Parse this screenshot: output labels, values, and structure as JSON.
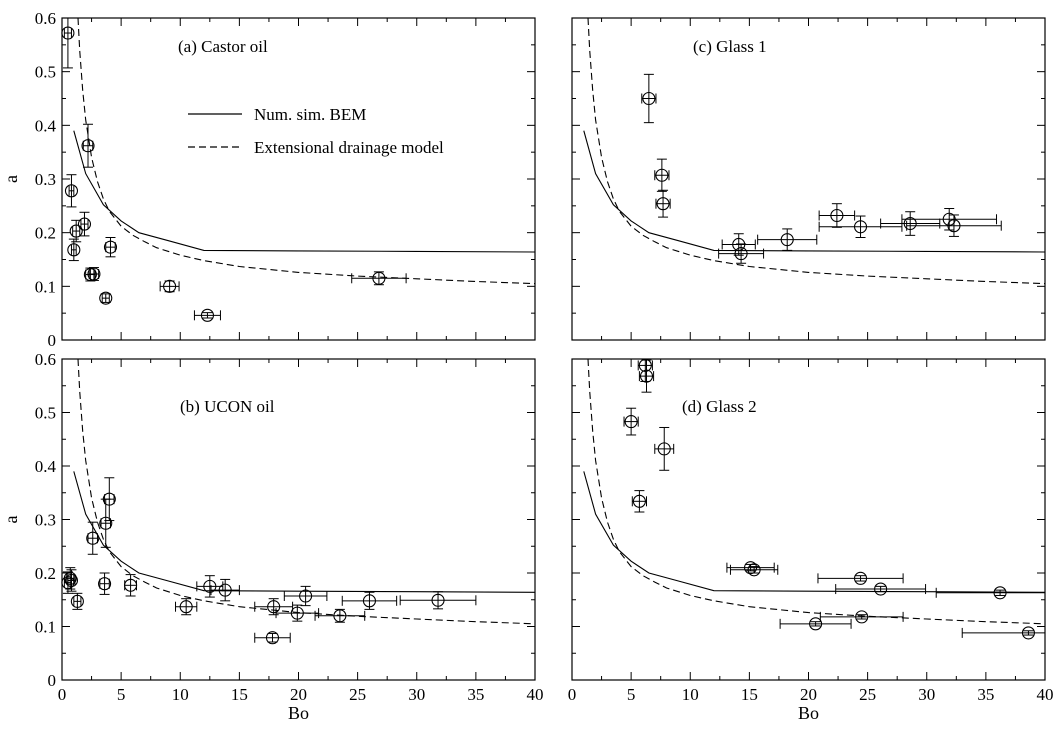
{
  "legend": {
    "solid_label": "Num. sim. BEM",
    "dashed_label": "Extensional drainage model"
  },
  "chart_data": [
    {
      "type": "scatter",
      "title": "(a) Castor oil",
      "xlabel": "",
      "ylabel": "a",
      "xlim": [
        0,
        40
      ],
      "ylim": [
        0,
        0.6
      ],
      "xticks": [
        "0",
        "5",
        "10",
        "15",
        "20",
        "25",
        "30",
        "35",
        "40"
      ],
      "yticks": [
        "0",
        "0.1",
        "0.2",
        "0.3",
        "0.4",
        "0.5",
        "0.6"
      ],
      "show_x_tick_labels": false,
      "show_y_tick_labels": true,
      "points": [
        {
          "x": 0.5,
          "y": 0.572,
          "xerr": 0.3,
          "yerr": 0.065
        },
        {
          "x": 0.8,
          "y": 0.278,
          "xerr": 0.2,
          "yerr": 0.03
        },
        {
          "x": 1.0,
          "y": 0.168,
          "xerr": 0.2,
          "yerr": 0.02
        },
        {
          "x": 1.2,
          "y": 0.203,
          "xerr": 0.3,
          "yerr": 0.02
        },
        {
          "x": 1.9,
          "y": 0.216,
          "xerr": 0.3,
          "yerr": 0.022
        },
        {
          "x": 2.2,
          "y": 0.362,
          "xerr": 0.4,
          "yerr": 0.04
        },
        {
          "x": 2.4,
          "y": 0.122,
          "xerr": 0.4,
          "yerr": 0.012
        },
        {
          "x": 2.7,
          "y": 0.123,
          "xerr": 0.4,
          "yerr": 0.012
        },
        {
          "x": 3.7,
          "y": 0.078,
          "xerr": 0.3,
          "yerr": 0.008
        },
        {
          "x": 4.1,
          "y": 0.173,
          "xerr": 0.4,
          "yerr": 0.018
        },
        {
          "x": 9.1,
          "y": 0.1,
          "xerr": 0.8,
          "yerr": 0.01
        },
        {
          "x": 12.3,
          "y": 0.046,
          "xerr": 1.1,
          "yerr": 0.005
        },
        {
          "x": 26.8,
          "y": 0.115,
          "xerr": 2.3,
          "yerr": 0.012
        }
      ]
    },
    {
      "type": "scatter",
      "title": "(b) UCON oil",
      "xlabel": "Bo",
      "ylabel": "a",
      "xlim": [
        0,
        40
      ],
      "ylim": [
        0,
        0.6
      ],
      "xticks": [
        "0",
        "5",
        "10",
        "15",
        "20",
        "25",
        "30",
        "35",
        "40"
      ],
      "yticks": [
        "0",
        "0.1",
        "0.2",
        "0.3",
        "0.4",
        "0.5",
        "0.6"
      ],
      "show_x_tick_labels": true,
      "show_y_tick_labels": true,
      "points": [
        {
          "x": 0.5,
          "y": 0.182,
          "xerr": 0.3,
          "yerr": 0.02
        },
        {
          "x": 0.7,
          "y": 0.19,
          "xerr": 0.3,
          "yerr": 0.02
        },
        {
          "x": 0.8,
          "y": 0.186,
          "xerr": 0.3,
          "yerr": 0.02
        },
        {
          "x": 1.3,
          "y": 0.147,
          "xerr": 0.3,
          "yerr": 0.015
        },
        {
          "x": 2.6,
          "y": 0.265,
          "xerr": 0.4,
          "yerr": 0.03
        },
        {
          "x": 3.6,
          "y": 0.18,
          "xerr": 0.4,
          "yerr": 0.02
        },
        {
          "x": 3.7,
          "y": 0.293,
          "xerr": 0.4,
          "yerr": 0.045
        },
        {
          "x": 4.0,
          "y": 0.338,
          "xerr": 0.4,
          "yerr": 0.04
        },
        {
          "x": 5.8,
          "y": 0.177,
          "xerr": 0.5,
          "yerr": 0.02
        },
        {
          "x": 10.5,
          "y": 0.137,
          "xerr": 0.9,
          "yerr": 0.015
        },
        {
          "x": 12.5,
          "y": 0.175,
          "xerr": 1.1,
          "yerr": 0.02
        },
        {
          "x": 13.8,
          "y": 0.168,
          "xerr": 1.2,
          "yerr": 0.02
        },
        {
          "x": 17.8,
          "y": 0.079,
          "xerr": 1.5,
          "yerr": 0.008
        },
        {
          "x": 17.9,
          "y": 0.137,
          "xerr": 1.6,
          "yerr": 0.015
        },
        {
          "x": 19.9,
          "y": 0.125,
          "xerr": 1.8,
          "yerr": 0.015
        },
        {
          "x": 20.6,
          "y": 0.157,
          "xerr": 1.8,
          "yerr": 0.018
        },
        {
          "x": 23.5,
          "y": 0.12,
          "xerr": 2.1,
          "yerr": 0.012
        },
        {
          "x": 26.0,
          "y": 0.148,
          "xerr": 2.3,
          "yerr": 0.016
        },
        {
          "x": 31.8,
          "y": 0.149,
          "xerr": 3.2,
          "yerr": 0.016
        }
      ]
    },
    {
      "type": "scatter",
      "title": "(c) Glass 1",
      "xlabel": "",
      "ylabel": "",
      "xlim": [
        0,
        40
      ],
      "ylim": [
        0,
        0.6
      ],
      "xticks": [
        "0",
        "5",
        "10",
        "15",
        "20",
        "25",
        "30",
        "35",
        "40"
      ],
      "yticks": [
        "0",
        "0.1",
        "0.2",
        "0.3",
        "0.4",
        "0.5",
        "0.6"
      ],
      "show_x_tick_labels": false,
      "show_y_tick_labels": false,
      "points": [
        {
          "x": 6.5,
          "y": 0.45,
          "xerr": 0.6,
          "yerr": 0.045
        },
        {
          "x": 7.6,
          "y": 0.307,
          "xerr": 0.6,
          "yerr": 0.03
        },
        {
          "x": 7.7,
          "y": 0.254,
          "xerr": 0.6,
          "yerr": 0.025
        },
        {
          "x": 14.1,
          "y": 0.178,
          "xerr": 1.4,
          "yerr": 0.02
        },
        {
          "x": 14.3,
          "y": 0.161,
          "xerr": 1.9,
          "yerr": 0.018
        },
        {
          "x": 18.2,
          "y": 0.187,
          "xerr": 2.5,
          "yerr": 0.02
        },
        {
          "x": 22.4,
          "y": 0.232,
          "xerr": 1.5,
          "yerr": 0.022
        },
        {
          "x": 24.4,
          "y": 0.211,
          "xerr": 3.5,
          "yerr": 0.02
        },
        {
          "x": 28.6,
          "y": 0.217,
          "xerr": 2.5,
          "yerr": 0.022
        },
        {
          "x": 31.9,
          "y": 0.225,
          "xerr": 4.0,
          "yerr": 0.02
        },
        {
          "x": 32.3,
          "y": 0.213,
          "xerr": 4.0,
          "yerr": 0.02
        }
      ]
    },
    {
      "type": "scatter",
      "title": "(d) Glass 2",
      "xlabel": "Bo",
      "ylabel": "",
      "xlim": [
        0,
        40
      ],
      "ylim": [
        0,
        0.6
      ],
      "xticks": [
        "0",
        "5",
        "10",
        "15",
        "20",
        "25",
        "30",
        "35",
        "40"
      ],
      "yticks": [
        "0",
        "0.1",
        "0.2",
        "0.3",
        "0.4",
        "0.5",
        "0.6"
      ],
      "show_x_tick_labels": true,
      "show_y_tick_labels": false,
      "points": [
        {
          "x": 6.2,
          "y": 0.588,
          "xerr": 0.6,
          "yerr": 0.03
        },
        {
          "x": 6.3,
          "y": 0.568,
          "xerr": 0.6,
          "yerr": 0.03
        },
        {
          "x": 5.0,
          "y": 0.483,
          "xerr": 0.6,
          "yerr": 0.025
        },
        {
          "x": 7.8,
          "y": 0.432,
          "xerr": 0.8,
          "yerr": 0.04
        },
        {
          "x": 5.7,
          "y": 0.334,
          "xerr": 0.6,
          "yerr": 0.02
        },
        {
          "x": 15.1,
          "y": 0.21,
          "xerr": 2.0,
          "yerr": 0.006
        },
        {
          "x": 15.4,
          "y": 0.206,
          "xerr": 2.0,
          "yerr": 0.006
        },
        {
          "x": 24.4,
          "y": 0.19,
          "xerr": 3.6,
          "yerr": 0.005
        },
        {
          "x": 26.1,
          "y": 0.17,
          "xerr": 3.8,
          "yerr": 0.005
        },
        {
          "x": 20.6,
          "y": 0.105,
          "xerr": 3.0,
          "yerr": 0.004
        },
        {
          "x": 24.5,
          "y": 0.118,
          "xerr": 3.5,
          "yerr": 0.004
        },
        {
          "x": 36.2,
          "y": 0.163,
          "xerr": 5.4,
          "yerr": 0.005
        },
        {
          "x": 38.6,
          "y": 0.088,
          "xerr": 5.6,
          "yerr": 0.004
        }
      ]
    }
  ],
  "curves": {
    "solid_name": "Num. sim. BEM",
    "solid": {
      "x": [
        1.0,
        2.0,
        3.5,
        5.0,
        6.5,
        9.0,
        12.0,
        20.0,
        30.0,
        40.0
      ],
      "y": [
        0.39,
        0.31,
        0.252,
        0.222,
        0.2,
        0.185,
        0.167,
        0.166,
        0.165,
        0.164
      ]
    },
    "dashed_name": "Extensional drainage model",
    "dashed": {
      "x": [
        1.35,
        1.5,
        1.75,
        2.0,
        2.5,
        3.0,
        3.5,
        4.0,
        5.0,
        6.0,
        7.0,
        8.0,
        10.0,
        12.0,
        15.0,
        20.0,
        25.0,
        30.0,
        35.0,
        40.0
      ],
      "y": [
        0.6,
        0.54,
        0.465,
        0.41,
        0.34,
        0.295,
        0.263,
        0.24,
        0.212,
        0.195,
        0.183,
        0.172,
        0.158,
        0.148,
        0.137,
        0.126,
        0.119,
        0.114,
        0.109,
        0.105
      ]
    }
  }
}
